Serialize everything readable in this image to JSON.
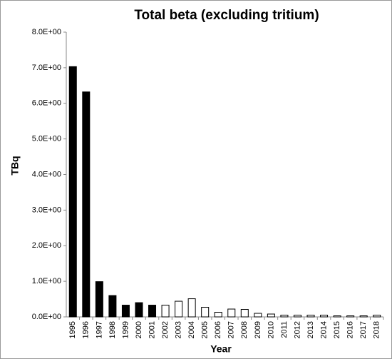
{
  "chart_data": {
    "type": "bar",
    "title": "Total beta (excluding tritium)",
    "x_label": "Year",
    "y_label": "TBq",
    "categories": [
      "1995",
      "1996",
      "1997",
      "1998",
      "1999",
      "2000",
      "2001",
      "2002",
      "2003",
      "2004",
      "2005",
      "2006",
      "2007",
      "2008",
      "2009",
      "2010",
      "2011",
      "2012",
      "2013",
      "2014",
      "2015",
      "2016",
      "2017",
      "2018"
    ],
    "values": [
      7.03,
      6.32,
      0.99,
      0.6,
      0.33,
      0.4,
      0.33,
      0.33,
      0.44,
      0.51,
      0.27,
      0.13,
      0.22,
      0.21,
      0.1,
      0.08,
      0.05,
      0.05,
      0.05,
      0.05,
      0.03,
      0.03,
      0.03,
      0.05
    ],
    "colors": [
      "#000000",
      "#000000",
      "#000000",
      "#000000",
      "#000000",
      "#000000",
      "#000000",
      "#ffffff",
      "#ffffff",
      "#ffffff",
      "#ffffff",
      "#ffffff",
      "#ffffff",
      "#ffffff",
      "#ffffff",
      "#ffffff",
      "#ffffff",
      "#ffffff",
      "#ffffff",
      "#ffffff",
      "#ffffff",
      "#ffffff",
      "#ffffff",
      "#ffffff"
    ],
    "edgecolor": "#000000",
    "ylim": [
      0,
      8
    ],
    "yticks": [
      {
        "value": 0,
        "label": "0.0E+00"
      },
      {
        "value": 1,
        "label": "1.0E+00"
      },
      {
        "value": 2,
        "label": "2.0E+00"
      },
      {
        "value": 3,
        "label": "3.0E+00"
      },
      {
        "value": 4,
        "label": "4.0E+00"
      },
      {
        "value": 5,
        "label": "5.0E+00"
      },
      {
        "value": 6,
        "label": "6.0E+00"
      },
      {
        "value": 7,
        "label": "7.0E+00"
      },
      {
        "value": 8,
        "label": "8.0E+00"
      }
    ],
    "grid": false
  }
}
